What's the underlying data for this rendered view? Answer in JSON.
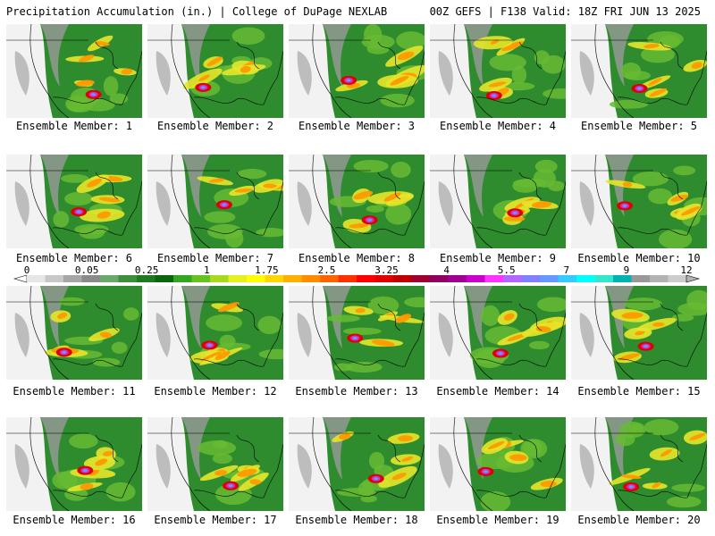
{
  "header": {
    "left": "Precipitation Accumulation (in.) | College of DuPage NEXLAB",
    "right": "00Z GEFS | F138 Valid: 18Z FRI JUN 13 2025"
  },
  "panels": [
    {
      "label": "Ensemble Member: 1"
    },
    {
      "label": "Ensemble Member: 2"
    },
    {
      "label": "Ensemble Member: 3"
    },
    {
      "label": "Ensemble Member: 4"
    },
    {
      "label": "Ensemble Member: 5"
    },
    {
      "label": "Ensemble Member: 6"
    },
    {
      "label": "Ensemble Member: 7"
    },
    {
      "label": "Ensemble Member: 8"
    },
    {
      "label": "Ensemble Member: 9"
    },
    {
      "label": "Ensemble Member: 10"
    },
    {
      "label": "Ensemble Member: 11"
    },
    {
      "label": "Ensemble Member: 12"
    },
    {
      "label": "Ensemble Member: 13"
    },
    {
      "label": "Ensemble Member: 14"
    },
    {
      "label": "Ensemble Member: 15"
    },
    {
      "label": "Ensemble Member: 16"
    },
    {
      "label": "Ensemble Member: 17"
    },
    {
      "label": "Ensemble Member: 18"
    },
    {
      "label": "Ensemble Member: 19"
    },
    {
      "label": "Ensemble Member: 20"
    }
  ],
  "legend": {
    "ticks": [
      "0",
      "0.05",
      "0.25",
      "1",
      "1.75",
      "2.5",
      "3.25",
      "4",
      "5.5",
      "7",
      "9",
      "12"
    ],
    "colors": [
      "#e6e6e6",
      "#c8c8c8",
      "#a6a6a6",
      "#8a8a8a",
      "#6aa96a",
      "#3c8f3c",
      "#1f7a1f",
      "#0b660b",
      "#33a622",
      "#66c21e",
      "#a8d91e",
      "#e6f01e",
      "#ffff00",
      "#ffd700",
      "#ffb000",
      "#ff8c00",
      "#ff6400",
      "#ff3000",
      "#ff0000",
      "#e00000",
      "#c00000",
      "#a00030",
      "#900060",
      "#a00090",
      "#cc00cc",
      "#ff33ff",
      "#b266ff",
      "#8080ff",
      "#6699ff",
      "#33ccff",
      "#00ffff",
      "#33e6cc",
      "#00b3b3",
      "#999999",
      "#b3b3b3",
      "#cccccc"
    ]
  }
}
